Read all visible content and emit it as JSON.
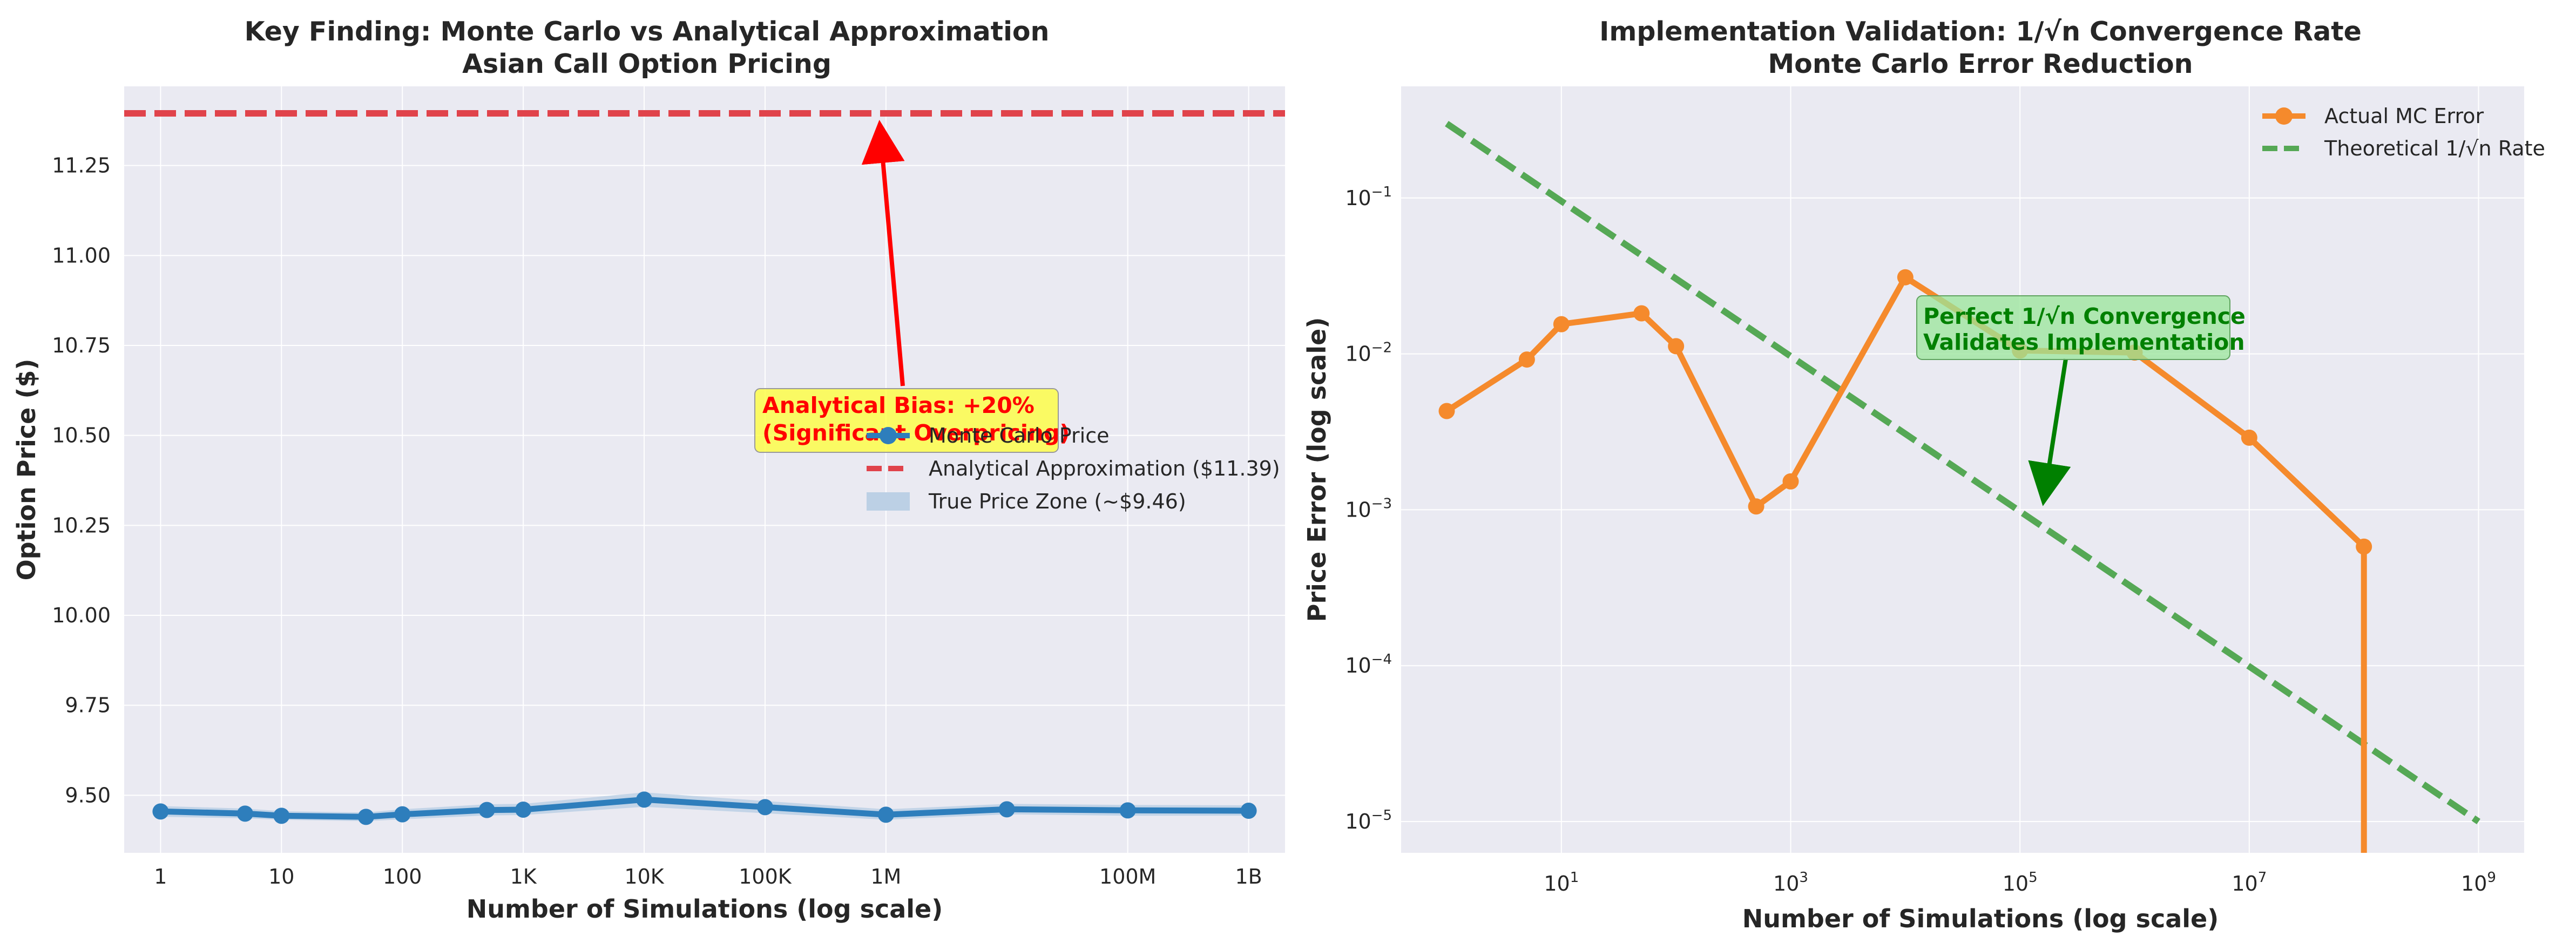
{
  "chart_data": [
    {
      "type": "line",
      "title": "Key Finding: Monte Carlo vs Analytical Approximation",
      "subtitle": "Asian Call Option Pricing",
      "xlabel": "Number of Simulations (log scale)",
      "ylabel": "Option Price ($)",
      "x_scale": "log",
      "xlim": [
        0.5,
        2000000000
      ],
      "ylim": [
        9.34,
        11.47
      ],
      "x_ticks": [
        {
          "value": 1,
          "label": "1"
        },
        {
          "value": 10,
          "label": "10"
        },
        {
          "value": 100,
          "label": "100"
        },
        {
          "value": 1000,
          "label": "1K"
        },
        {
          "value": 10000,
          "label": "10K"
        },
        {
          "value": 100000,
          "label": "100K"
        },
        {
          "value": 1000000,
          "label": "1M"
        },
        {
          "value": 100000000,
          "label": "100M"
        },
        {
          "value": 1000000000,
          "label": "1B"
        }
      ],
      "y_ticks": [
        {
          "value": 9.5,
          "label": "9.50"
        },
        {
          "value": 9.75,
          "label": "9.75"
        },
        {
          "value": 10.0,
          "label": "10.00"
        },
        {
          "value": 10.25,
          "label": "10.25"
        },
        {
          "value": 10.5,
          "label": "10.50"
        },
        {
          "value": 10.75,
          "label": "10.75"
        },
        {
          "value": 11.0,
          "label": "11.00"
        },
        {
          "value": 11.25,
          "label": "11.25"
        }
      ],
      "grid": true,
      "legend_position": "center-right",
      "series": [
        {
          "name": "Monte Carlo Price",
          "color": "#2e7ebc",
          "style": "solid-markers",
          "x": [
            1,
            5,
            10,
            50,
            100,
            500,
            1000,
            10000,
            100000,
            1000000,
            10000000,
            100000000,
            1000000000
          ],
          "y": [
            9.455,
            9.449,
            9.443,
            9.44,
            9.447,
            9.459,
            9.46,
            9.488,
            9.467,
            9.446,
            9.461,
            9.458,
            9.457
          ]
        },
        {
          "name": "Analytical Approximation ($11.39)",
          "color": "#e0434b",
          "style": "dashed",
          "y_constant": 11.395
        },
        {
          "name": "True Price Zone (~$9.46)",
          "color": "#bcd0e5",
          "style": "band",
          "y_low": [
            9.44,
            9.436,
            9.432,
            9.428,
            9.433,
            9.444,
            9.445,
            9.468,
            9.45,
            9.432,
            9.447,
            9.443,
            9.443
          ],
          "y_high": [
            9.47,
            9.463,
            9.456,
            9.452,
            9.461,
            9.475,
            9.476,
            9.508,
            9.484,
            9.461,
            9.476,
            9.473,
            9.472
          ]
        }
      ],
      "annotations": [
        {
          "text_lines": [
            "Analytical Bias: +20%",
            "(Significant Overpricing)"
          ],
          "color": "#ff0000",
          "box_color": "#ffff33",
          "points_to": {
            "x": 1000000,
            "y": 11.39
          }
        }
      ]
    },
    {
      "type": "line",
      "title": "Implementation Validation: 1/√n Convergence Rate",
      "subtitle": "Monte Carlo Error Reduction",
      "xlabel": "Number of Simulations (log scale)",
      "ylabel": "Price Error (log scale)",
      "x_scale": "log",
      "y_scale": "log",
      "xlim": [
        0.4,
        2500000000
      ],
      "ylim": [
        6.3e-06,
        0.52
      ],
      "x_ticks": [
        {
          "value": 10,
          "base": "10",
          "exp": "1"
        },
        {
          "value": 1000,
          "base": "10",
          "exp": "3"
        },
        {
          "value": 100000,
          "base": "10",
          "exp": "5"
        },
        {
          "value": 10000000,
          "base": "10",
          "exp": "7"
        },
        {
          "value": 1000000000,
          "base": "10",
          "exp": "9"
        }
      ],
      "y_ticks": [
        {
          "value": 1e-05,
          "base": "10",
          "exp": "−5"
        },
        {
          "value": 0.0001,
          "base": "10",
          "exp": "−4"
        },
        {
          "value": 0.001,
          "base": "10",
          "exp": "−3"
        },
        {
          "value": 0.01,
          "base": "10",
          "exp": "−2"
        },
        {
          "value": 0.1,
          "base": "10",
          "exp": "−1"
        }
      ],
      "grid": true,
      "legend_position": "upper-right",
      "series": [
        {
          "name": "Actual MC Error",
          "color": "#f58a2c",
          "style": "solid-markers",
          "x": [
            1,
            5,
            10,
            50,
            100,
            500,
            1000,
            10000,
            100000,
            1000000,
            10000000,
            100000000
          ],
          "y": [
            0.0043,
            0.0092,
            0.0155,
            0.0182,
            0.0112,
            0.00105,
            0.00152,
            0.031,
            0.0105,
            0.0102,
            0.0029,
            0.00058
          ]
        },
        {
          "name": "Theoretical 1/√n Rate",
          "color": "#55a855",
          "style": "dashed",
          "x": [
            1,
            1000000000
          ],
          "y": [
            0.3,
            1e-05
          ]
        }
      ],
      "annotations": [
        {
          "text_lines": [
            "Perfect 1/√n Convergence",
            "Validates Implementation"
          ],
          "color": "#008000",
          "box_color": "#99e699",
          "points_to": {
            "x": 100000,
            "y": 0.001
          }
        }
      ]
    }
  ]
}
